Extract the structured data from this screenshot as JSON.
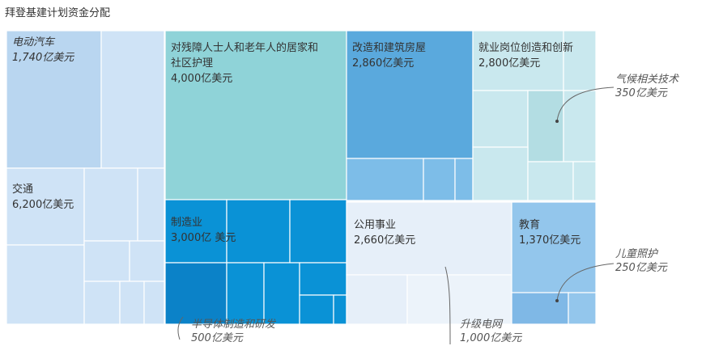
{
  "chart_data": {
    "type": "treemap",
    "title": "拜登基建计划资金分配",
    "colors": {
      "transport": "#cfe3f6",
      "transport_dark": "#b9d6f0",
      "care": "#8fd3d8",
      "housing": "#5aa9dd",
      "housing_light": "#7dbde8",
      "jobs": "#c9e8ee",
      "jobs_mid": "#b3dde3",
      "manufacturing": "#0a92d6",
      "manufacturing_dark": "#0b82c8",
      "utility": "#e6eff9",
      "utility_mid": "#ecf3fa",
      "education": "#93c6ec",
      "education_dark": "#7fb8e6",
      "border": "#ffffff",
      "leader": "#666666"
    },
    "nodes": [
      {
        "name": "交通",
        "value": 6200,
        "value_label": "6,200亿美元"
      },
      {
        "name": "对残障人士人和老年人的居家和社区护理",
        "value": 4000,
        "value_label": "4,000亿美元"
      },
      {
        "name": "制造业",
        "value": 3000,
        "value_label": "3,000亿 美元"
      },
      {
        "name": "改造和建筑房屋",
        "value": 2860,
        "value_label": "2,860亿美元"
      },
      {
        "name": "公用事业",
        "value": 2660,
        "value_label": "2,660亿美元"
      },
      {
        "name": "就业岗位创造和创新",
        "value": 2800,
        "value_label": "2,800亿美元"
      },
      {
        "name": "教育",
        "value": 1370,
        "value_label": "1,370亿美元"
      }
    ],
    "subitems": [
      {
        "name": "电动汽车",
        "value": 1740,
        "value_label": "1,740亿美元",
        "parent": "交通"
      },
      {
        "name": "半导体制造和研发",
        "value": 500,
        "value_label": "500亿美元",
        "parent": "制造业"
      },
      {
        "name": "升级电网",
        "value": 1000,
        "value_label": "1,000亿美元",
        "parent": "公用事业"
      },
      {
        "name": "气候相关技术",
        "value": 350,
        "value_label": "350亿美元",
        "parent": "就业岗位创造和创新"
      },
      {
        "name": "儿童照护",
        "value": 250,
        "value_label": "250亿美元",
        "parent": "教育"
      }
    ]
  }
}
